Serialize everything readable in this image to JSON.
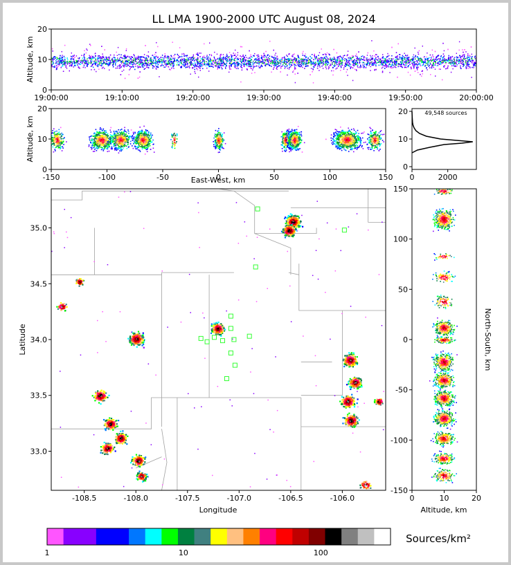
{
  "chart_data": {
    "type": "heatmap",
    "title": "LL LMA 1900-2000 UTC August 08, 2024",
    "panels": {
      "time_altitude": {
        "ylabel": "Altitude, km",
        "ylim": [
          0,
          20
        ],
        "ytick_labels": [
          "0",
          "10",
          "20"
        ],
        "xtick_labels": [
          "19:00:00",
          "19:10:00",
          "19:20:00",
          "19:30:00",
          "19:40:00",
          "19:50:00",
          "20:00:00"
        ]
      },
      "ew_altitude": {
        "xlabel": "East-West, km",
        "ylabel": "Altitude, km",
        "xlim": [
          -150,
          150
        ],
        "ylim": [
          0,
          20
        ],
        "xtick_labels": [
          "-150",
          "-100",
          "-50",
          "0",
          "50",
          "100",
          "150"
        ],
        "ytick_labels": [
          "0",
          "10",
          "20"
        ],
        "clusters_x_km": [
          -145,
          -105,
          -88,
          -68,
          -40,
          0,
          60,
          68,
          115,
          140
        ]
      },
      "histogram": {
        "annotation": "49,548 sources",
        "xtick_labels": [
          "0",
          "2000"
        ],
        "ytick_labels": [
          "0",
          "10",
          "20"
        ],
        "profile_alt_km": [
          5,
          6,
          7,
          8,
          8.5,
          9,
          9.5,
          10,
          11,
          12,
          13,
          14,
          15,
          16,
          18,
          20
        ],
        "profile_count": [
          0,
          300,
          1000,
          1800,
          2800,
          3400,
          2500,
          1600,
          800,
          420,
          220,
          120,
          60,
          30,
          10,
          0
        ]
      },
      "map": {
        "xlabel": "Longitude",
        "ylabel": "Latitude",
        "xlim": [
          -108.82,
          -105.58
        ],
        "ylim": [
          32.65,
          35.35
        ],
        "xtick_labels": [
          "-108.5",
          "-108.0",
          "-107.5",
          "-107.0",
          "-106.5",
          "-106.0"
        ],
        "ytick_labels": [
          "33.0",
          "33.5",
          "34.0",
          "34.5",
          "35.0"
        ],
        "stations": [
          [
            -106.82,
            35.17
          ],
          [
            -105.98,
            34.98
          ],
          [
            -106.84,
            34.65
          ],
          [
            -107.08,
            34.21
          ],
          [
            -107.08,
            34.1
          ],
          [
            -107.37,
            34.01
          ],
          [
            -107.31,
            33.98
          ],
          [
            -107.24,
            34.02
          ],
          [
            -107.16,
            33.99
          ],
          [
            -107.05,
            34.0
          ],
          [
            -106.9,
            34.03
          ],
          [
            -107.08,
            33.88
          ],
          [
            -107.04,
            33.77
          ],
          [
            -107.12,
            33.65
          ]
        ],
        "storm_cells": [
          [
            -106.48,
            35.06
          ],
          [
            -106.52,
            34.98
          ],
          [
            -108.0,
            34.01
          ],
          [
            -107.21,
            34.1
          ],
          [
            -108.35,
            33.5
          ],
          [
            -108.25,
            33.25
          ],
          [
            -108.15,
            33.12
          ],
          [
            -108.28,
            33.03
          ],
          [
            -107.98,
            32.92
          ],
          [
            -107.95,
            32.78
          ],
          [
            -105.93,
            33.82
          ],
          [
            -105.88,
            33.62
          ],
          [
            -105.95,
            33.45
          ],
          [
            -105.92,
            33.28
          ],
          [
            -105.65,
            33.45
          ],
          [
            -108.55,
            34.52
          ],
          [
            -108.72,
            34.3
          ],
          [
            -105.78,
            32.7
          ]
        ]
      },
      "ns_altitude": {
        "xlabel": "Altitude, km",
        "ylabel": "North-South, km",
        "xlim": [
          0,
          20
        ],
        "ylim": [
          -150,
          150
        ],
        "xtick_labels": [
          "0",
          "10",
          "20"
        ],
        "ytick_labels": [
          "-150",
          "-100",
          "-50",
          "0",
          "50",
          "100",
          "150"
        ],
        "clusters_y_km": [
          148,
          120,
          83,
          62,
          38,
          12,
          0,
          -22,
          -40,
          -58,
          -78,
          -98,
          -118,
          -135
        ]
      }
    },
    "colorbar": {
      "label": "Sources/km²",
      "tick_labels": [
        "1",
        "10",
        "100"
      ],
      "colors": [
        "#ff55ff",
        "#8800ff",
        "#8800ff",
        "#0000ff",
        "#0000ff",
        "#0077ff",
        "#00ffff",
        "#00ff00",
        "#008040",
        "#408080",
        "#ffff00",
        "#ffc080",
        "#ff8000",
        "#ff0080",
        "#ff0000",
        "#c00000",
        "#800000",
        "#000000",
        "#808080",
        "#c0c0c0",
        "#ffffff"
      ]
    }
  }
}
